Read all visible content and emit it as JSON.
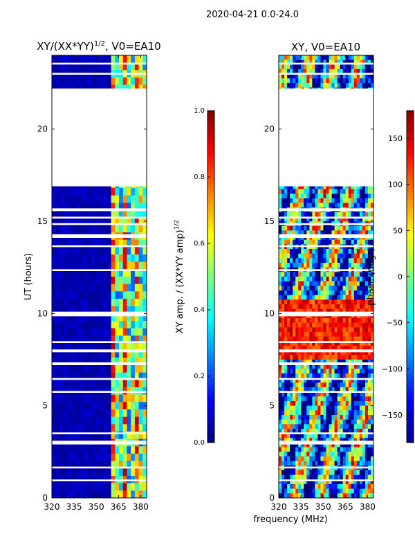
{
  "figure": {
    "suptitle": "2020-04-21 0.0-24.0",
    "xlabel": "frequency (MHz)",
    "colors": {
      "jet": [
        "#00007f",
        "#0000ff",
        "#007fff",
        "#00ffff",
        "#7fff7f",
        "#ffff00",
        "#ff7f00",
        "#ff0000",
        "#7f0000"
      ],
      "gap": "#ffffff",
      "frame": "#000000"
    }
  },
  "chart_data": [
    {
      "type": "heatmap",
      "id": "amp",
      "title_main": "XY/(XX*YY)",
      "title_sup": "1/2",
      "title_tail": ", V0=EA10",
      "xlim": [
        320,
        384
      ],
      "xticks": [
        320,
        335,
        350,
        365,
        380
      ],
      "ylim": [
        0,
        24
      ],
      "yticks": [
        0,
        5,
        10,
        15,
        20
      ],
      "ylabel": "UT (hours)",
      "gaps_hours": [
        [
          0.9,
          1.0
        ],
        [
          1.6,
          1.7
        ],
        [
          2.9,
          3.1
        ],
        [
          3.45,
          3.55
        ],
        [
          5.7,
          5.8
        ],
        [
          6.4,
          6.5
        ],
        [
          7.2,
          7.35
        ],
        [
          7.9,
          8.05
        ],
        [
          8.4,
          8.5
        ],
        [
          9.85,
          10.1
        ],
        [
          12.3,
          12.4
        ],
        [
          13.6,
          13.7
        ],
        [
          14.1,
          14.3
        ],
        [
          14.8,
          14.9
        ],
        [
          15.15,
          15.25
        ],
        [
          15.55,
          15.7
        ],
        [
          16.9,
          22.2
        ],
        [
          16.9,
          17.0
        ],
        [
          19.25,
          19.5
        ],
        [
          20.8,
          20.9
        ],
        [
          21.8,
          22.2
        ],
        [
          22.95,
          23.05
        ],
        [
          23.5,
          23.6
        ]
      ],
      "colorbar": {
        "label_main": "XY amp. / (XX*YY amp)",
        "label_sup": "1/2",
        "range": [
          0.0,
          1.0
        ],
        "ticks": [
          "0.0",
          "0.2",
          "0.4",
          "0.6",
          "0.8",
          "1.0"
        ]
      }
    },
    {
      "type": "heatmap",
      "id": "phase",
      "title_main": "XY, V0=EA10",
      "xlim": [
        320,
        384
      ],
      "xticks": [
        320,
        335,
        350,
        365,
        380
      ],
      "ylim": [
        0,
        24
      ],
      "yticks": [
        0,
        5,
        10,
        15,
        20
      ],
      "gaps_hours": [
        [
          0.9,
          1.0
        ],
        [
          1.6,
          1.7
        ],
        [
          2.9,
          3.1
        ],
        [
          3.45,
          3.55
        ],
        [
          5.7,
          5.8
        ],
        [
          6.4,
          6.5
        ],
        [
          7.2,
          7.35
        ],
        [
          7.9,
          8.05
        ],
        [
          8.4,
          8.5
        ],
        [
          9.85,
          10.1
        ],
        [
          12.3,
          12.4
        ],
        [
          13.6,
          13.7
        ],
        [
          14.1,
          14.3
        ],
        [
          14.8,
          14.9
        ],
        [
          15.15,
          15.25
        ],
        [
          15.55,
          15.7
        ],
        [
          16.9,
          22.2
        ],
        [
          16.9,
          17.0
        ],
        [
          19.25,
          19.5
        ],
        [
          20.8,
          20.9
        ],
        [
          21.8,
          22.2
        ],
        [
          22.95,
          23.05
        ],
        [
          23.5,
          23.6
        ]
      ],
      "colorbar": {
        "label_main": "phase (degr)",
        "range": [
          -180,
          180
        ],
        "ticks": [
          "150",
          "100",
          "50",
          "0",
          "−50",
          "−100",
          "−150"
        ],
        "tick_values": [
          150,
          100,
          50,
          0,
          -50,
          -100,
          -150
        ]
      }
    }
  ]
}
